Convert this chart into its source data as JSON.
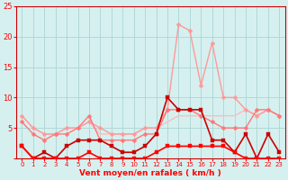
{
  "title": "",
  "xlabel": "Vent moyen/en rafales ( km/h )",
  "background_color": "#d6f0f0",
  "grid_color": "#b0d8d8",
  "x": [
    0,
    1,
    2,
    3,
    4,
    5,
    6,
    7,
    8,
    9,
    10,
    11,
    12,
    13,
    14,
    15,
    16,
    17,
    18,
    19,
    20,
    21,
    22,
    23
  ],
  "series": [
    {
      "y": [
        7,
        5,
        4,
        4,
        5,
        5,
        6,
        4,
        4,
        4,
        4,
        5,
        5,
        6,
        7,
        7,
        7,
        7,
        7,
        7,
        8,
        7,
        8,
        7
      ],
      "color": "#ffbbbb",
      "linewidth": 1.0,
      "marker": null,
      "markersize": 0
    },
    {
      "y": [
        7,
        5,
        4,
        4,
        5,
        5,
        6,
        5,
        4,
        4,
        4,
        5,
        5,
        8,
        22,
        21,
        12,
        19,
        10,
        10,
        8,
        7,
        8,
        7
      ],
      "color": "#ff9999",
      "linewidth": 1.0,
      "marker": "D",
      "markersize": 2.5
    },
    {
      "y": [
        6,
        4,
        3,
        4,
        4,
        5,
        7,
        3,
        3,
        3,
        3,
        4,
        4,
        8,
        8,
        8,
        7,
        6,
        5,
        5,
        5,
        8,
        8,
        7
      ],
      "color": "#ff7777",
      "linewidth": 1.0,
      "marker": "D",
      "markersize": 2.5
    },
    {
      "y": [
        2,
        0,
        1,
        0,
        2,
        3,
        3,
        3,
        2,
        1,
        1,
        2,
        4,
        10,
        8,
        8,
        8,
        3,
        3,
        1,
        4,
        0,
        4,
        1
      ],
      "color": "#cc0000",
      "linewidth": 1.2,
      "marker": "s",
      "markersize": 2.5
    },
    {
      "y": [
        2,
        0,
        0,
        0,
        0,
        0,
        1,
        0,
        0,
        0,
        0,
        0,
        1,
        2,
        2,
        2,
        2,
        2,
        2,
        1,
        0,
        0,
        0,
        0
      ],
      "color": "#ff0000",
      "linewidth": 1.2,
      "marker": "s",
      "markersize": 2.5
    }
  ],
  "ylim": [
    0,
    25
  ],
  "yticks": [
    0,
    5,
    10,
    15,
    20,
    25
  ],
  "xticks": [
    0,
    1,
    2,
    3,
    4,
    5,
    6,
    7,
    8,
    9,
    10,
    11,
    12,
    13,
    14,
    15,
    16,
    17,
    18,
    19,
    20,
    21,
    22,
    23
  ],
  "tick_color": "#ff0000",
  "label_color": "#ff0000",
  "spine_color": "#cc0000"
}
